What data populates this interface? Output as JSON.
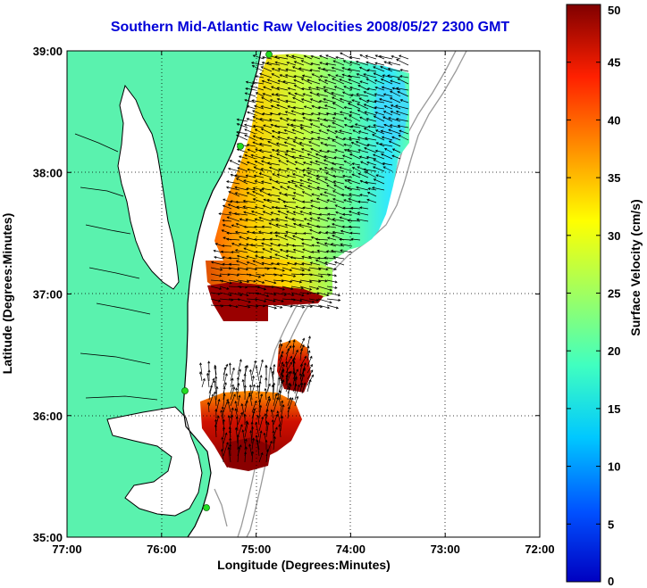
{
  "title": "Southern Mid-Atlantic Raw Velocities 2008/05/27 2300 GMT",
  "map": {
    "lon_range": [
      -77,
      -72
    ],
    "lat_range": [
      35,
      39
    ],
    "x_axis_label": "Longitude (Degrees:Minutes)",
    "y_axis_label": "Latitude (Degrees:Minutes)",
    "x_ticks": [
      "77:00",
      "76:00",
      "75:00",
      "74:00",
      "73:00",
      "72:00"
    ],
    "y_ticks": [
      "39:00",
      "38:00",
      "37:00",
      "36:00",
      "35:00"
    ],
    "grid": true,
    "land_color": "#5af2ae",
    "coast_color": "#000000",
    "bathymetry_color": "#9a9a9a",
    "stations_color": "#22dd22"
  },
  "colorbar": {
    "label": "Surface Velocity (cm/s)",
    "min": 0,
    "max": 50,
    "ticks": [
      "0",
      "5",
      "10",
      "15",
      "20",
      "25",
      "30",
      "35",
      "40",
      "45",
      "50"
    ],
    "colormap": "jet"
  }
}
